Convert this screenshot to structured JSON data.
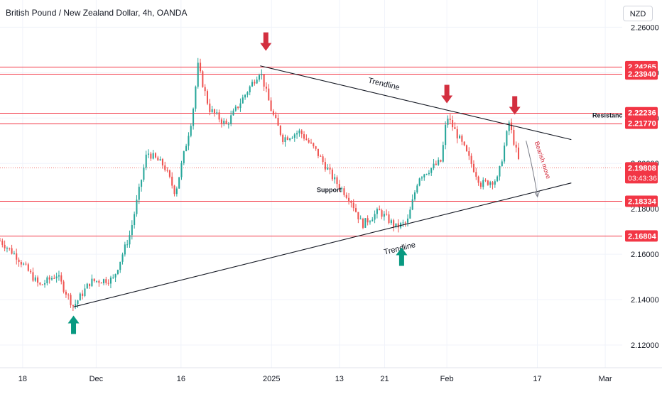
{
  "title": "British Pound / New Zealand Dollar, 4h, OANDA",
  "currency_button": "NZD",
  "colors": {
    "up": "#26a69a",
    "down": "#ef5350",
    "level_line": "#f23645",
    "price_tag": "#f23645",
    "arrow_up": "#089981",
    "arrow_down": "#d32f3f",
    "trendline": "#131722",
    "grid": "#f0f3fa"
  },
  "icons": {
    "arrow_down": "arrow-down-icon",
    "arrow_up": "arrow-up-icon"
  },
  "annotations": {
    "trendline_upper": "Trendline",
    "trendline_lower": "Trendline",
    "resistance": "Resistance",
    "support": "Support",
    "bearish": "Bearish move"
  },
  "chart_data": {
    "type": "candlestick",
    "symbol": "GBPNZD",
    "timeframe": "4h",
    "ylim": [
      2.11,
      2.272
    ],
    "y_ticks": [
      "2.26000",
      "2.24000",
      "2.22000",
      "2.20000",
      "2.18000",
      "2.16000",
      "2.14000",
      "2.12000"
    ],
    "x_ticks": [
      "18",
      "Dec",
      "16",
      "2025",
      "13",
      "21",
      "Feb",
      "17",
      "Mar"
    ],
    "x_tick_dates": [
      "2024-11-18",
      "2024-12-01",
      "2024-12-16",
      "2025-01-01",
      "2025-01-13",
      "2025-01-21",
      "2025-02-01",
      "2025-02-17",
      "2025-03-01"
    ],
    "x_range_dates": [
      "2024-11-14",
      "2025-03-04"
    ],
    "last_date": "2025-02-14",
    "horizontal_levels": [
      "2.24265",
      "2.23940",
      "2.22236",
      "2.21770",
      "2.18334",
      "2.16804"
    ],
    "current_price": "2.19808",
    "countdown": "03:43:36",
    "price_path": [
      [
        "2024-11-14",
        2.166
      ],
      [
        "2024-11-17",
        2.159
      ],
      [
        "2024-11-21",
        2.146
      ],
      [
        "2024-11-24",
        2.151
      ],
      [
        "2024-11-27",
        2.137
      ],
      [
        "2024-11-30",
        2.148
      ],
      [
        "2024-12-04",
        2.149
      ],
      [
        "2024-12-07",
        2.169
      ],
      [
        "2024-12-10",
        2.205
      ],
      [
        "2024-12-13",
        2.199
      ],
      [
        "2024-12-15",
        2.187
      ],
      [
        "2024-12-18",
        2.221
      ],
      [
        "2024-12-19",
        2.243
      ],
      [
        "2024-12-21",
        2.224
      ],
      [
        "2024-12-24",
        2.217
      ],
      [
        "2024-12-27",
        2.229
      ],
      [
        "2024-12-30",
        2.241
      ],
      [
        "2025-01-01",
        2.223
      ],
      [
        "2025-01-03",
        2.211
      ],
      [
        "2025-01-06",
        2.214
      ],
      [
        "2025-01-09",
        2.205
      ],
      [
        "2025-01-12",
        2.193
      ],
      [
        "2025-01-15",
        2.184
      ],
      [
        "2025-01-17",
        2.173
      ],
      [
        "2025-01-20",
        2.179
      ],
      [
        "2025-01-23",
        2.172
      ],
      [
        "2025-01-25",
        2.174
      ],
      [
        "2025-01-27",
        2.194
      ],
      [
        "2025-01-31",
        2.201
      ],
      [
        "2025-02-01",
        2.221
      ],
      [
        "2025-02-04",
        2.207
      ],
      [
        "2025-02-07",
        2.191
      ],
      [
        "2025-02-10",
        2.193
      ],
      [
        "2025-02-12",
        2.218
      ],
      [
        "2025-02-14",
        2.198
      ]
    ],
    "trendlines": [
      {
        "from": [
          "2024-12-30",
          2.243
        ],
        "to": [
          "2025-02-23",
          2.2105
        ]
      },
      {
        "from": [
          "2024-11-27",
          2.1368
        ],
        "to": [
          "2025-02-23",
          2.1914
        ]
      }
    ]
  }
}
